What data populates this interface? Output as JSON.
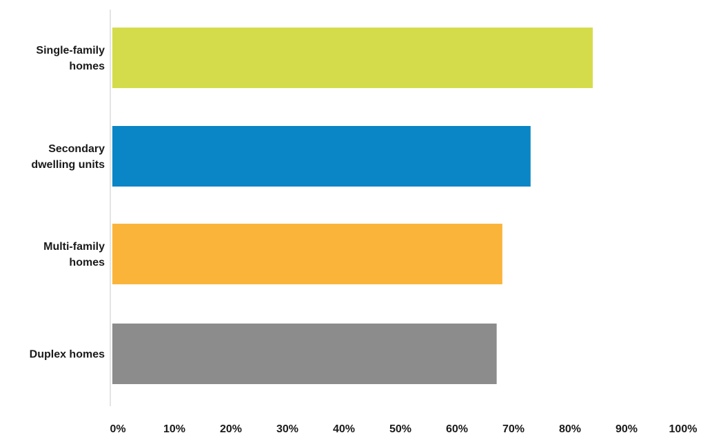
{
  "chart_data": {
    "type": "bar",
    "orientation": "horizontal",
    "categories": [
      [
        "Single-family",
        "homes"
      ],
      [
        "Secondary",
        "dwelling units"
      ],
      [
        "Multi-family",
        "homes"
      ],
      [
        "Duplex homes"
      ]
    ],
    "values": [
      85,
      74,
      69,
      68
    ],
    "colors": [
      "#d5dc4c",
      "#0a86c6",
      "#fbb43a",
      "#8c8c8c"
    ],
    "xlim": [
      0,
      100
    ],
    "x_ticks": [
      0,
      10,
      20,
      30,
      40,
      50,
      60,
      70,
      80,
      90,
      100
    ],
    "x_tick_labels": [
      "0%",
      "10%",
      "20%",
      "30%",
      "40%",
      "50%",
      "60%",
      "70%",
      "80%",
      "90%",
      "100%"
    ],
    "value_unit": "percent",
    "grid": false,
    "legend": "none"
  }
}
